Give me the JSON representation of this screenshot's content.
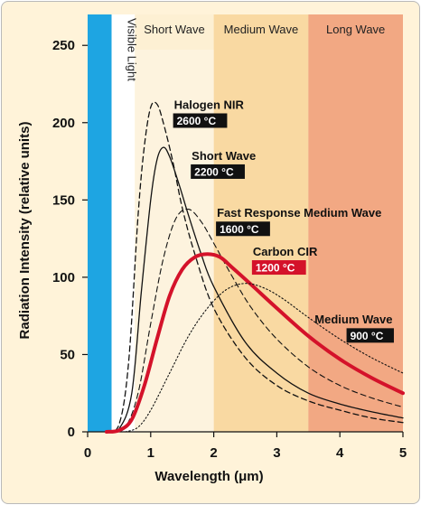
{
  "chart_data": {
    "type": "line",
    "xlabel": "Wavelength (μm)",
    "ylabel": "Radiation Intensity (relative units)",
    "xlim": [
      0,
      5
    ],
    "ylim": [
      0,
      270
    ],
    "x_ticks": [
      "0",
      "1",
      "2",
      "3",
      "4",
      "5"
    ],
    "y_ticks": [
      "0",
      "50",
      "100",
      "150",
      "200",
      "250"
    ],
    "bands": [
      {
        "label": "",
        "from": 0.0,
        "to": 0.38,
        "color": "#1ea5e2"
      },
      {
        "label": "Visible Light",
        "from": 0.38,
        "to": 0.75,
        "color": "#ffffff"
      },
      {
        "label": "Short Wave",
        "from": 0.75,
        "to": 2.0,
        "color": "#fdf0d3"
      },
      {
        "label": "Medium Wave",
        "from": 2.0,
        "to": 3.5,
        "color": "#f9d9a2"
      },
      {
        "label": "Long Wave",
        "from": 3.5,
        "to": 5.0,
        "color": "#f2a883"
      }
    ],
    "series": [
      {
        "name": "Halogen NIR",
        "temperature": "2600 °C",
        "label_color": "#111111",
        "style": "dashed",
        "color": "#111111",
        "width": 1.3,
        "points": [
          [
            0.3,
            0
          ],
          [
            0.5,
            5
          ],
          [
            0.65,
            45
          ],
          [
            0.8,
            140
          ],
          [
            0.9,
            185
          ],
          [
            1.0,
            210
          ],
          [
            1.1,
            212
          ],
          [
            1.2,
            200
          ],
          [
            1.35,
            175
          ],
          [
            1.5,
            145
          ],
          [
            1.7,
            115
          ],
          [
            2.0,
            80
          ],
          [
            2.5,
            48
          ],
          [
            3.0,
            30
          ],
          [
            3.5,
            20
          ],
          [
            4.0,
            14
          ],
          [
            4.5,
            9
          ],
          [
            5.0,
            6
          ]
        ],
        "label_at": [
          1.37,
          209
        ],
        "temp_at": [
          1.37,
          199
        ]
      },
      {
        "name": "Short Wave",
        "temperature": "2200 °C",
        "label_color": "#111111",
        "style": "solid",
        "color": "#111111",
        "width": 1.3,
        "points": [
          [
            0.3,
            0
          ],
          [
            0.5,
            2
          ],
          [
            0.7,
            25
          ],
          [
            0.85,
            90
          ],
          [
            1.0,
            150
          ],
          [
            1.1,
            176
          ],
          [
            1.2,
            184
          ],
          [
            1.3,
            178
          ],
          [
            1.45,
            160
          ],
          [
            1.6,
            140
          ],
          [
            1.8,
            115
          ],
          [
            2.0,
            94
          ],
          [
            2.5,
            58
          ],
          [
            3.0,
            38
          ],
          [
            3.5,
            25
          ],
          [
            4.0,
            18
          ],
          [
            4.5,
            13
          ],
          [
            5.0,
            9
          ]
        ],
        "label_at": [
          1.65,
          176
        ],
        "temp_at": [
          1.65,
          166
        ]
      },
      {
        "name": "Fast Response Medium Wave",
        "temperature": "1600 °C",
        "label_color": "#111111",
        "style": "dashed",
        "color": "#111111",
        "width": 1.1,
        "points": [
          [
            0.4,
            0
          ],
          [
            0.6,
            3
          ],
          [
            0.8,
            25
          ],
          [
            1.0,
            70
          ],
          [
            1.2,
            112
          ],
          [
            1.4,
            138
          ],
          [
            1.6,
            144
          ],
          [
            1.8,
            136
          ],
          [
            2.0,
            122
          ],
          [
            2.3,
            100
          ],
          [
            2.6,
            80
          ],
          [
            3.0,
            60
          ],
          [
            3.5,
            42
          ],
          [
            4.0,
            30
          ],
          [
            4.5,
            22
          ],
          [
            5.0,
            16
          ]
        ],
        "label_at": [
          2.05,
          139
        ],
        "temp_at": [
          2.05,
          129
        ]
      },
      {
        "name": "Carbon CIR",
        "temperature": "1200 °C",
        "label_color": "#d4122a",
        "style": "solid",
        "color": "#d4122a",
        "width": 4.0,
        "points": [
          [
            0.3,
            0
          ],
          [
            0.5,
            1
          ],
          [
            0.7,
            8
          ],
          [
            0.9,
            30
          ],
          [
            1.1,
            60
          ],
          [
            1.3,
            88
          ],
          [
            1.5,
            105
          ],
          [
            1.7,
            113
          ],
          [
            1.9,
            115
          ],
          [
            2.1,
            113
          ],
          [
            2.3,
            106
          ],
          [
            2.6,
            95
          ],
          [
            3.0,
            80
          ],
          [
            3.5,
            62
          ],
          [
            4.0,
            47
          ],
          [
            4.5,
            35
          ],
          [
            5.0,
            25
          ]
        ],
        "label_at": [
          2.62,
          114
        ],
        "temp_at": [
          2.62,
          104
        ]
      },
      {
        "name": "Medium Wave",
        "temperature": "900 °C",
        "label_color": "#111111",
        "style": "dotted",
        "color": "#111111",
        "width": 1.1,
        "points": [
          [
            0.6,
            0
          ],
          [
            0.8,
            3
          ],
          [
            1.0,
            14
          ],
          [
            1.3,
            38
          ],
          [
            1.6,
            62
          ],
          [
            1.9,
            80
          ],
          [
            2.2,
            92
          ],
          [
            2.5,
            96
          ],
          [
            2.8,
            93
          ],
          [
            3.1,
            86
          ],
          [
            3.5,
            74
          ],
          [
            4.0,
            60
          ],
          [
            4.5,
            48
          ],
          [
            5.0,
            38
          ]
        ],
        "label_at": [
          3.6,
          70
        ],
        "temp_at": [
          4.12,
          60
        ]
      }
    ]
  }
}
